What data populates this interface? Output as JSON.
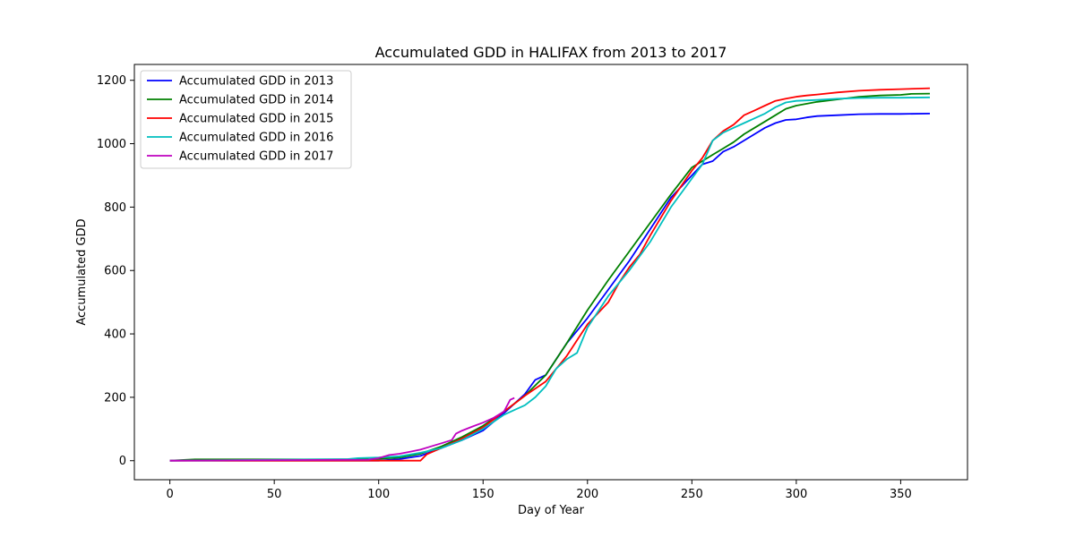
{
  "chart_data": {
    "type": "line",
    "title": "Accumulated GDD in HALIFAX from 2013 to 2017",
    "xlabel": "Day of Year",
    "ylabel": "Accumulated GDD",
    "xlim": [
      -17,
      382
    ],
    "ylim": [
      -60,
      1250
    ],
    "xticks": [
      0,
      50,
      100,
      150,
      200,
      250,
      300,
      350
    ],
    "yticks": [
      0,
      200,
      400,
      600,
      800,
      1000,
      1200
    ],
    "grid": false,
    "legend_position": "top-left",
    "series": [
      {
        "name": "Accumulated GDD in 2013",
        "color": "#0000ff",
        "points": [
          [
            0,
            0
          ],
          [
            100,
            0
          ],
          [
            110,
            5
          ],
          [
            120,
            15
          ],
          [
            130,
            40
          ],
          [
            140,
            65
          ],
          [
            150,
            95
          ],
          [
            160,
            150
          ],
          [
            170,
            210
          ],
          [
            175,
            255
          ],
          [
            180,
            270
          ],
          [
            190,
            370
          ],
          [
            200,
            450
          ],
          [
            210,
            540
          ],
          [
            220,
            630
          ],
          [
            230,
            730
          ],
          [
            240,
            830
          ],
          [
            250,
            900
          ],
          [
            255,
            935
          ],
          [
            260,
            945
          ],
          [
            265,
            975
          ],
          [
            270,
            990
          ],
          [
            275,
            1010
          ],
          [
            280,
            1030
          ],
          [
            285,
            1050
          ],
          [
            290,
            1065
          ],
          [
            295,
            1075
          ],
          [
            300,
            1077
          ],
          [
            305,
            1083
          ],
          [
            310,
            1087
          ],
          [
            320,
            1090
          ],
          [
            330,
            1093
          ],
          [
            340,
            1094
          ],
          [
            350,
            1094
          ],
          [
            364,
            1095
          ]
        ]
      },
      {
        "name": "Accumulated GDD in 2014",
        "color": "#008000",
        "points": [
          [
            0,
            0
          ],
          [
            12,
            4
          ],
          [
            50,
            4
          ],
          [
            95,
            4
          ],
          [
            110,
            10
          ],
          [
            120,
            22
          ],
          [
            130,
            45
          ],
          [
            140,
            75
          ],
          [
            150,
            110
          ],
          [
            160,
            155
          ],
          [
            170,
            205
          ],
          [
            180,
            270
          ],
          [
            190,
            370
          ],
          [
            200,
            475
          ],
          [
            210,
            570
          ],
          [
            220,
            660
          ],
          [
            230,
            750
          ],
          [
            240,
            840
          ],
          [
            250,
            925
          ],
          [
            255,
            945
          ],
          [
            260,
            965
          ],
          [
            265,
            985
          ],
          [
            270,
            1005
          ],
          [
            275,
            1030
          ],
          [
            280,
            1050
          ],
          [
            285,
            1070
          ],
          [
            290,
            1090
          ],
          [
            295,
            1110
          ],
          [
            300,
            1120
          ],
          [
            310,
            1132
          ],
          [
            320,
            1140
          ],
          [
            330,
            1148
          ],
          [
            340,
            1152
          ],
          [
            350,
            1154
          ],
          [
            355,
            1157
          ],
          [
            364,
            1158
          ]
        ]
      },
      {
        "name": "Accumulated GDD in 2015",
        "color": "#ff0000",
        "points": [
          [
            0,
            0
          ],
          [
            100,
            0
          ],
          [
            120,
            0
          ],
          [
            123,
            20
          ],
          [
            130,
            40
          ],
          [
            140,
            70
          ],
          [
            150,
            105
          ],
          [
            160,
            155
          ],
          [
            170,
            205
          ],
          [
            180,
            250
          ],
          [
            190,
            330
          ],
          [
            200,
            430
          ],
          [
            210,
            500
          ],
          [
            215,
            560
          ],
          [
            220,
            610
          ],
          [
            225,
            650
          ],
          [
            230,
            710
          ],
          [
            240,
            820
          ],
          [
            250,
            915
          ],
          [
            255,
            955
          ],
          [
            260,
            1010
          ],
          [
            265,
            1040
          ],
          [
            270,
            1060
          ],
          [
            275,
            1090
          ],
          [
            280,
            1105
          ],
          [
            285,
            1120
          ],
          [
            290,
            1135
          ],
          [
            295,
            1142
          ],
          [
            300,
            1148
          ],
          [
            305,
            1152
          ],
          [
            310,
            1155
          ],
          [
            320,
            1162
          ],
          [
            330,
            1167
          ],
          [
            340,
            1170
          ],
          [
            350,
            1172
          ],
          [
            364,
            1175
          ]
        ]
      },
      {
        "name": "Accumulated GDD in 2016",
        "color": "#00bfbf",
        "points": [
          [
            0,
            0
          ],
          [
            85,
            5
          ],
          [
            90,
            8
          ],
          [
            100,
            10
          ],
          [
            110,
            14
          ],
          [
            120,
            25
          ],
          [
            130,
            40
          ],
          [
            140,
            65
          ],
          [
            150,
            100
          ],
          [
            160,
            145
          ],
          [
            165,
            160
          ],
          [
            170,
            175
          ],
          [
            175,
            200
          ],
          [
            180,
            235
          ],
          [
            185,
            290
          ],
          [
            190,
            320
          ],
          [
            195,
            340
          ],
          [
            200,
            420
          ],
          [
            210,
            520
          ],
          [
            220,
            600
          ],
          [
            230,
            690
          ],
          [
            240,
            800
          ],
          [
            250,
            890
          ],
          [
            255,
            935
          ],
          [
            260,
            1010
          ],
          [
            265,
            1035
          ],
          [
            270,
            1050
          ],
          [
            275,
            1065
          ],
          [
            280,
            1080
          ],
          [
            285,
            1095
          ],
          [
            290,
            1115
          ],
          [
            295,
            1130
          ],
          [
            300,
            1135
          ],
          [
            310,
            1138
          ],
          [
            320,
            1142
          ],
          [
            330,
            1144
          ],
          [
            340,
            1145
          ],
          [
            350,
            1145
          ],
          [
            364,
            1146
          ]
        ]
      },
      {
        "name": "Accumulated GDD in 2017",
        "color": "#bf00bf",
        "points": [
          [
            0,
            0
          ],
          [
            95,
            3
          ],
          [
            100,
            8
          ],
          [
            105,
            18
          ],
          [
            110,
            22
          ],
          [
            115,
            28
          ],
          [
            120,
            35
          ],
          [
            125,
            45
          ],
          [
            130,
            55
          ],
          [
            135,
            65
          ],
          [
            137,
            85
          ],
          [
            140,
            95
          ],
          [
            145,
            108
          ],
          [
            150,
            120
          ],
          [
            155,
            135
          ],
          [
            160,
            155
          ],
          [
            163,
            192
          ],
          [
            165,
            198
          ]
        ]
      }
    ]
  }
}
